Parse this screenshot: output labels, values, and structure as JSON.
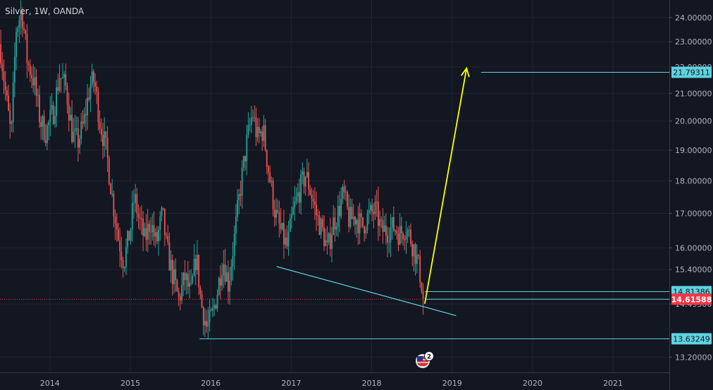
{
  "header": {
    "title": "Silver, 1W, OANDA"
  },
  "event_badge": {
    "count": "2"
  },
  "chart_data": {
    "type": "candlestick",
    "title": "Silver, 1W, OANDA",
    "xlabel": "",
    "ylabel": "",
    "x_ticks": [
      "2014",
      "2015",
      "2016",
      "2017",
      "2018",
      "2019",
      "2020",
      "2021"
    ],
    "x_tick_values": [
      2014.0,
      2015.0,
      2016.0,
      2017.0,
      2018.0,
      2019.0,
      2020.0,
      2021.0
    ],
    "xlim": [
      2013.38,
      2021.7
    ],
    "y_scale": "log",
    "y_ticks": [
      "24.00000",
      "23.00000",
      "22.00000",
      "21.00000",
      "20.00000",
      "19.00000",
      "18.00000",
      "17.00000",
      "16.00000",
      "15.40000",
      "14.49500",
      "13.20000"
    ],
    "y_tick_values": [
      24.0,
      23.0,
      22.0,
      21.0,
      20.0,
      19.0,
      18.0,
      17.0,
      16.0,
      15.4,
      14.495,
      13.2
    ],
    "ylim": [
      12.85,
      24.75
    ],
    "grid": true,
    "price_path": [
      [
        2013.38,
        22.9
      ],
      [
        2013.45,
        21.0
      ],
      [
        2013.52,
        19.4
      ],
      [
        2013.58,
        23.5
      ],
      [
        2013.65,
        24.3
      ],
      [
        2013.72,
        22.2
      ],
      [
        2013.8,
        21.5
      ],
      [
        2013.88,
        20.0
      ],
      [
        2013.95,
        19.6
      ],
      [
        2014.05,
        20.4
      ],
      [
        2014.12,
        21.7
      ],
      [
        2014.2,
        21.2
      ],
      [
        2014.28,
        19.5
      ],
      [
        2014.35,
        19.3
      ],
      [
        2014.42,
        19.9
      ],
      [
        2014.5,
        21.3
      ],
      [
        2014.55,
        21.5
      ],
      [
        2014.62,
        20.0
      ],
      [
        2014.7,
        19.0
      ],
      [
        2014.78,
        17.4
      ],
      [
        2014.85,
        16.3
      ],
      [
        2014.92,
        15.6
      ],
      [
        2015.0,
        16.5
      ],
      [
        2015.05,
        17.5
      ],
      [
        2015.1,
        16.9
      ],
      [
        2015.18,
        16.2
      ],
      [
        2015.25,
        16.8
      ],
      [
        2015.32,
        16.1
      ],
      [
        2015.4,
        17.0
      ],
      [
        2015.45,
        16.0
      ],
      [
        2015.52,
        15.3
      ],
      [
        2015.6,
        14.6
      ],
      [
        2015.68,
        15.2
      ],
      [
        2015.75,
        14.7
      ],
      [
        2015.82,
        15.8
      ],
      [
        2015.88,
        14.5
      ],
      [
        2015.95,
        13.9
      ],
      [
        2016.02,
        14.2
      ],
      [
        2016.08,
        14.8
      ],
      [
        2016.15,
        15.7
      ],
      [
        2016.22,
        15.0
      ],
      [
        2016.3,
        16.4
      ],
      [
        2016.37,
        17.8
      ],
      [
        2016.45,
        19.3
      ],
      [
        2016.52,
        20.3
      ],
      [
        2016.58,
        19.4
      ],
      [
        2016.65,
        19.7
      ],
      [
        2016.72,
        18.3
      ],
      [
        2016.8,
        17.0
      ],
      [
        2016.88,
        16.4
      ],
      [
        2016.95,
        16.0
      ],
      [
        2017.02,
        17.0
      ],
      [
        2017.1,
        17.7
      ],
      [
        2017.18,
        18.2
      ],
      [
        2017.25,
        17.6
      ],
      [
        2017.32,
        16.9
      ],
      [
        2017.4,
        16.4
      ],
      [
        2017.45,
        15.9
      ],
      [
        2017.52,
        16.7
      ],
      [
        2017.58,
        17.0
      ],
      [
        2017.65,
        17.6
      ],
      [
        2017.72,
        16.8
      ],
      [
        2017.8,
        16.9
      ],
      [
        2017.88,
        16.6
      ],
      [
        2017.95,
        16.9
      ],
      [
        2018.05,
        17.1
      ],
      [
        2018.12,
        16.5
      ],
      [
        2018.2,
        16.5
      ],
      [
        2018.28,
        16.6
      ],
      [
        2018.35,
        16.4
      ],
      [
        2018.42,
        16.6
      ],
      [
        2018.48,
        16.3
      ],
      [
        2018.55,
        15.8
      ],
      [
        2018.6,
        15.3
      ],
      [
        2018.65,
        14.62
      ]
    ],
    "last_price": 14.61588,
    "annotations": [
      {
        "type": "horizontal",
        "price": 21.79311,
        "x_from": 2019.36,
        "label": "21.79311"
      },
      {
        "type": "horizontal",
        "price": 14.81386,
        "x_from": 2018.66,
        "label": "14.81386"
      },
      {
        "type": "horizontal",
        "price": 14.61588,
        "x_from": 2018.66,
        "label": "14.61588"
      },
      {
        "type": "horizontal",
        "price": 13.63249,
        "x_from": 2015.86,
        "label": "13.63249"
      },
      {
        "type": "trendline",
        "from": [
          2016.82,
          15.48
        ],
        "to": [
          2019.05,
          14.2
        ]
      },
      {
        "type": "arrow",
        "from": [
          2018.66,
          14.5
        ],
        "to": [
          2019.18,
          21.95
        ]
      }
    ],
    "colors": {
      "background": "#131722",
      "up_candle": "#26a69a",
      "down_candle": "#ef5350",
      "annotation_line": "#5ed3e0",
      "arrow": "#ffff00",
      "last_price": "#f23645",
      "grid": "#1f2433",
      "axis_text": "#b2b5be"
    }
  }
}
